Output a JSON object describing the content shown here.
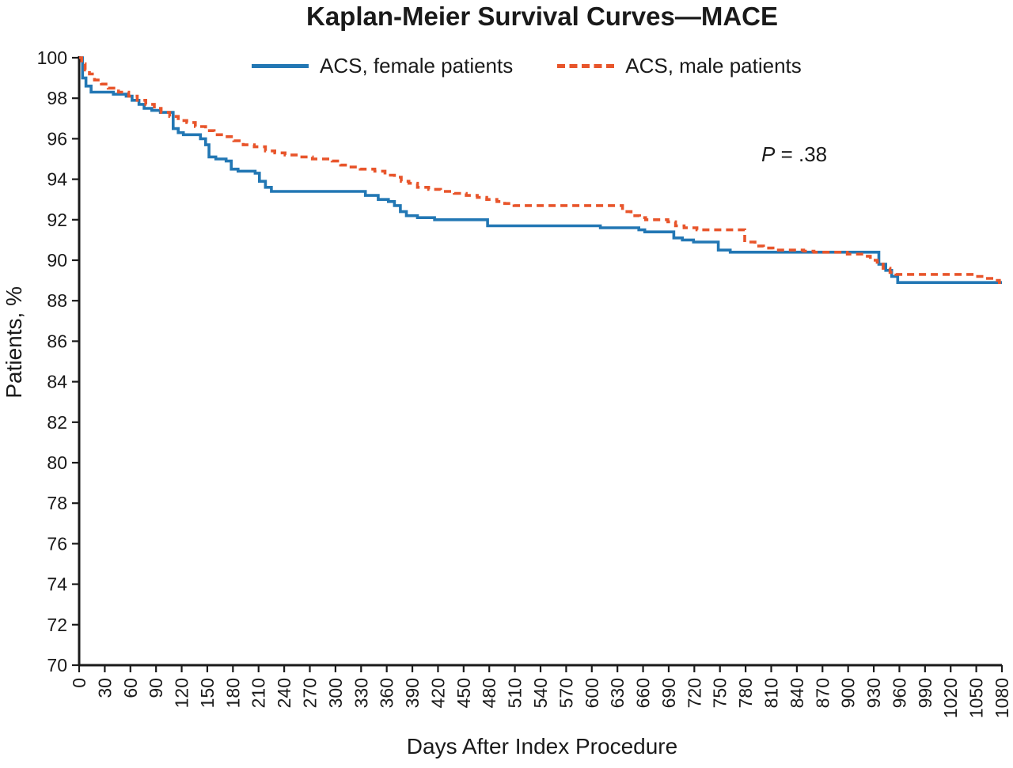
{
  "chart_data": {
    "type": "line",
    "subtype": "kaplan-meier-step",
    "title": "Kaplan-Meier Survival Curves—MACE",
    "xlabel": "Days After Index Procedure",
    "ylabel": "Patients, %",
    "xlim": [
      0,
      1080
    ],
    "ylim": [
      70,
      100
    ],
    "xtick_step": 30,
    "ytick_step": 2,
    "grid": false,
    "legend_position": "top-center",
    "annotation": {
      "symbol": "P",
      "rest": " = .38"
    },
    "axis_color": "#1a1a1a",
    "series": [
      {
        "name": "ACS, female patients",
        "color": "#2277b4",
        "style": "solid",
        "points": [
          [
            0,
            100
          ],
          [
            4,
            99.0
          ],
          [
            8,
            98.6
          ],
          [
            14,
            98.3
          ],
          [
            40,
            98.2
          ],
          [
            55,
            98.1
          ],
          [
            62,
            97.9
          ],
          [
            70,
            97.7
          ],
          [
            76,
            97.5
          ],
          [
            85,
            97.4
          ],
          [
            95,
            97.3
          ],
          [
            110,
            96.5
          ],
          [
            116,
            96.3
          ],
          [
            122,
            96.2
          ],
          [
            142,
            96.0
          ],
          [
            148,
            95.7
          ],
          [
            152,
            95.1
          ],
          [
            160,
            95.0
          ],
          [
            172,
            94.9
          ],
          [
            178,
            94.5
          ],
          [
            186,
            94.4
          ],
          [
            206,
            94.3
          ],
          [
            211,
            93.9
          ],
          [
            218,
            93.6
          ],
          [
            225,
            93.4
          ],
          [
            335,
            93.2
          ],
          [
            350,
            93.0
          ],
          [
            362,
            92.9
          ],
          [
            369,
            92.7
          ],
          [
            376,
            92.4
          ],
          [
            383,
            92.2
          ],
          [
            396,
            92.1
          ],
          [
            416,
            92.0
          ],
          [
            478,
            91.7
          ],
          [
            610,
            91.6
          ],
          [
            655,
            91.5
          ],
          [
            662,
            91.4
          ],
          [
            696,
            91.1
          ],
          [
            706,
            91.0
          ],
          [
            719,
            90.9
          ],
          [
            748,
            90.5
          ],
          [
            762,
            90.4
          ],
          [
            936,
            89.8
          ],
          [
            944,
            89.5
          ],
          [
            951,
            89.2
          ],
          [
            958,
            88.9
          ]
        ]
      },
      {
        "name": "ACS, male patients",
        "color": "#e8552b",
        "style": "dashed",
        "dash": "9 6",
        "points": [
          [
            0,
            100
          ],
          [
            3,
            99.7
          ],
          [
            7,
            99.4
          ],
          [
            12,
            99.2
          ],
          [
            18,
            98.9
          ],
          [
            26,
            98.7
          ],
          [
            34,
            98.5
          ],
          [
            46,
            98.3
          ],
          [
            58,
            98.1
          ],
          [
            68,
            97.9
          ],
          [
            78,
            97.7
          ],
          [
            88,
            97.5
          ],
          [
            96,
            97.3
          ],
          [
            106,
            97.1
          ],
          [
            116,
            96.9
          ],
          [
            126,
            96.8
          ],
          [
            136,
            96.6
          ],
          [
            148,
            96.4
          ],
          [
            158,
            96.2
          ],
          [
            170,
            96.1
          ],
          [
            181,
            95.9
          ],
          [
            192,
            95.7
          ],
          [
            205,
            95.6
          ],
          [
            218,
            95.4
          ],
          [
            229,
            95.3
          ],
          [
            241,
            95.2
          ],
          [
            258,
            95.1
          ],
          [
            273,
            95.0
          ],
          [
            296,
            94.9
          ],
          [
            306,
            94.7
          ],
          [
            316,
            94.6
          ],
          [
            329,
            94.5
          ],
          [
            346,
            94.4
          ],
          [
            358,
            94.2
          ],
          [
            369,
            94.1
          ],
          [
            377,
            93.9
          ],
          [
            386,
            93.8
          ],
          [
            396,
            93.6
          ],
          [
            409,
            93.5
          ],
          [
            423,
            93.4
          ],
          [
            439,
            93.3
          ],
          [
            453,
            93.2
          ],
          [
            466,
            93.1
          ],
          [
            477,
            93.0
          ],
          [
            489,
            92.9
          ],
          [
            498,
            92.8
          ],
          [
            509,
            92.7
          ],
          [
            636,
            92.4
          ],
          [
            646,
            92.2
          ],
          [
            656,
            92.1
          ],
          [
            663,
            92.0
          ],
          [
            689,
            91.9
          ],
          [
            698,
            91.7
          ],
          [
            708,
            91.6
          ],
          [
            723,
            91.5
          ],
          [
            779,
            90.9
          ],
          [
            791,
            90.7
          ],
          [
            801,
            90.6
          ],
          [
            812,
            90.5
          ],
          [
            848,
            90.45
          ],
          [
            860,
            90.4
          ],
          [
            899,
            90.3
          ],
          [
            916,
            90.2
          ],
          [
            926,
            90.0
          ],
          [
            934,
            89.9
          ],
          [
            941,
            89.6
          ],
          [
            949,
            89.4
          ],
          [
            956,
            89.3
          ],
          [
            1049,
            89.2
          ],
          [
            1061,
            89.1
          ],
          [
            1071,
            89.0
          ],
          [
            1077,
            88.9
          ]
        ]
      }
    ]
  }
}
